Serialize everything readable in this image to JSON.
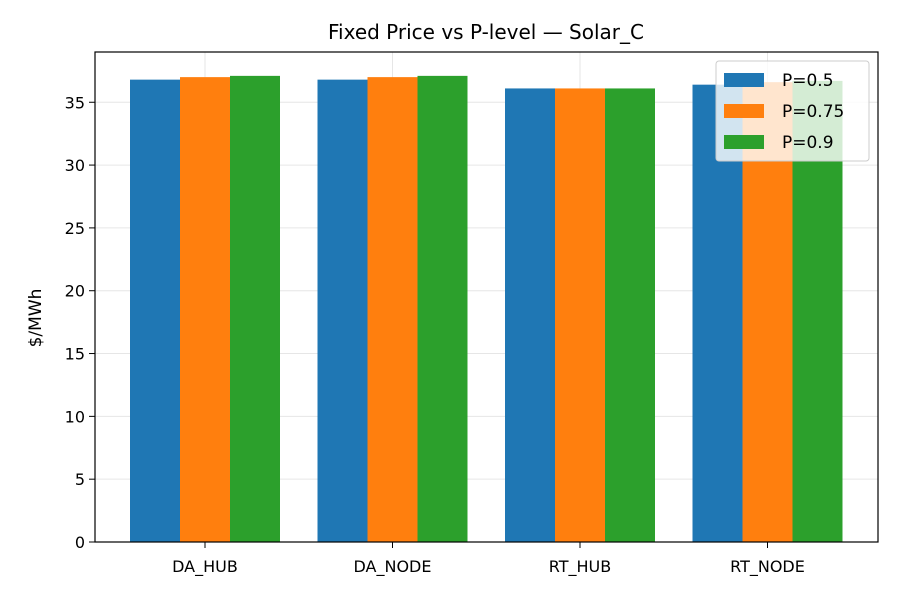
{
  "chart_data": {
    "type": "bar",
    "title": "Fixed Price vs P-level — Solar_C",
    "xlabel": "",
    "ylabel": "$/MWh",
    "categories": [
      "DA_HUB",
      "DA_NODE",
      "RT_HUB",
      "RT_NODE"
    ],
    "series": [
      {
        "name": "P=0.5",
        "color": "#1f77b4",
        "values": [
          36.8,
          36.8,
          36.1,
          36.4
        ]
      },
      {
        "name": "P=0.75",
        "color": "#ff7f0e",
        "values": [
          37.0,
          37.0,
          36.1,
          36.6
        ]
      },
      {
        "name": "P=0.9",
        "color": "#2ca02c",
        "values": [
          37.1,
          37.1,
          36.1,
          36.7
        ]
      }
    ],
    "ylim": [
      0,
      39
    ],
    "yticks": [
      0,
      5,
      10,
      15,
      20,
      25,
      30,
      35
    ],
    "grid": true,
    "legend": "top-right"
  }
}
